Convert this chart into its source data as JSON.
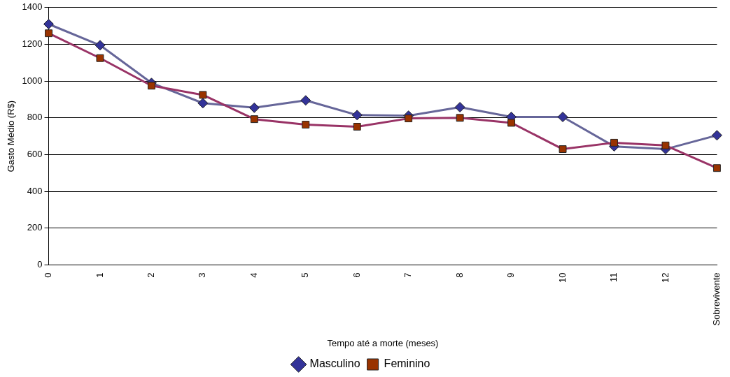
{
  "chart_data": {
    "type": "line",
    "xlabel": "Tempo até a morte (meses)",
    "ylabel": "Gasto Médio (R$)",
    "categories": [
      "0",
      "1",
      "2",
      "3",
      "4",
      "5",
      "6",
      "7",
      "8",
      "9",
      "10",
      "11",
      "12",
      "Sobrevivente"
    ],
    "series": [
      {
        "name": "Masculino",
        "color": "#666699",
        "marker": "diamond",
        "values": [
          1310,
          1195,
          990,
          880,
          855,
          895,
          815,
          812,
          858,
          805,
          805,
          645,
          630,
          705
        ]
      },
      {
        "name": "Feminino",
        "color": "#993366",
        "marker": "square",
        "values": [
          1260,
          1125,
          975,
          925,
          793,
          763,
          752,
          797,
          800,
          773,
          630,
          665,
          650,
          527
        ]
      }
    ],
    "ylim": [
      0,
      1400
    ],
    "yticks": [
      0,
      200,
      400,
      600,
      800,
      1000,
      1200,
      1400
    ],
    "grid": "y",
    "legend": "bottom",
    "line_style": "solid"
  }
}
